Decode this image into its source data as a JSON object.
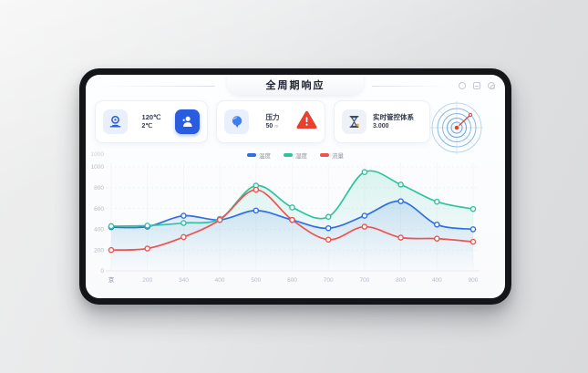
{
  "window": {
    "title": "全周期响应",
    "controls": [
      "circle",
      "minimize",
      "more"
    ]
  },
  "cards": {
    "temperature": {
      "primary": "120℃",
      "secondary": "2℃"
    },
    "pressure": {
      "label": "压力",
      "value": "50",
      "unit": "m"
    },
    "system": {
      "label": "实时管控体系",
      "value": "3.000"
    }
  },
  "chart_data": {
    "type": "line",
    "title": "",
    "xlabel": "",
    "ylabel": "",
    "x_labels": [
      "京",
      "200",
      "340",
      "400",
      "500",
      "600",
      "700",
      "700",
      "800",
      "400",
      "900"
    ],
    "y_ticks": [
      0,
      200,
      400,
      600,
      800,
      1000
    ],
    "y_axis_top_label": "1000",
    "ylim": [
      0,
      1150
    ],
    "grid": true,
    "legend_position": "top-center",
    "legend": [
      {
        "label": "温度",
        "color": "#2f6fe4"
      },
      {
        "label": "湿度",
        "color": "#2ec4a0"
      },
      {
        "label": "流量",
        "color": "#ef5350"
      }
    ],
    "series": [
      {
        "name": "温度",
        "color": "#2f6fe4",
        "fill": true,
        "values": [
          420,
          425,
          530,
          490,
          580,
          490,
          410,
          530,
          670,
          445,
          400
        ]
      },
      {
        "name": "湿度",
        "color": "#2ec4a0",
        "fill": true,
        "values": [
          430,
          435,
          460,
          500,
          820,
          610,
          520,
          950,
          830,
          665,
          595
        ]
      },
      {
        "name": "流量",
        "color": "#ef5350",
        "fill": false,
        "values": [
          200,
          215,
          325,
          490,
          780,
          490,
          300,
          425,
          320,
          310,
          280
        ]
      }
    ]
  },
  "colors": {
    "accent_blue": "#2a5ce0",
    "alert_red": "#e8402f",
    "teal": "#2ec4a0",
    "radar_ring": "#84b8e6",
    "radar_needle": "#e8402f",
    "axis_text": "#b4bac8"
  }
}
